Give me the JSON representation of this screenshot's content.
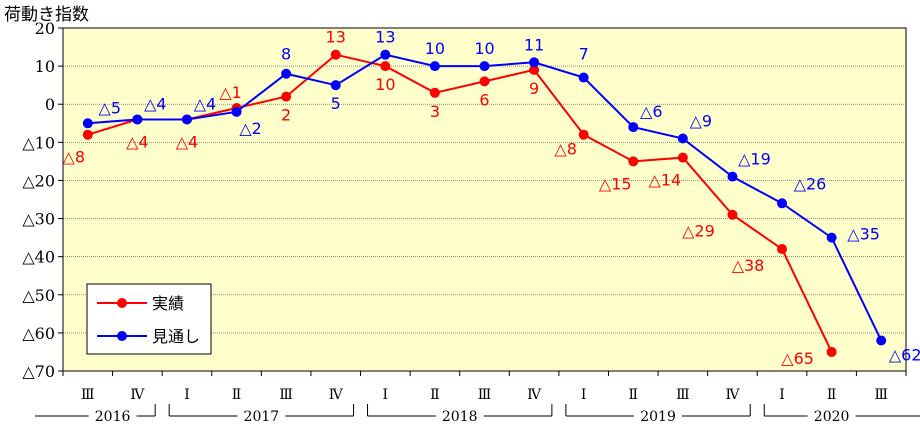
{
  "chart_data": {
    "type": "line",
    "ylabel": "荷動き指数",
    "ylim": [
      -70,
      20
    ],
    "yticks": [
      {
        "v": 20,
        "label": "20"
      },
      {
        "v": 10,
        "label": "10"
      },
      {
        "v": 0,
        "label": "0"
      },
      {
        "v": -10,
        "label": "△10"
      },
      {
        "v": -20,
        "label": "△20"
      },
      {
        "v": -30,
        "label": "△30"
      },
      {
        "v": -40,
        "label": "△40"
      },
      {
        "v": -50,
        "label": "△50"
      },
      {
        "v": -60,
        "label": "△60"
      },
      {
        "v": -70,
        "label": "△70"
      }
    ],
    "categories": [
      "Ⅲ",
      "Ⅳ",
      "Ⅰ",
      "Ⅱ",
      "Ⅲ",
      "Ⅳ",
      "Ⅰ",
      "Ⅱ",
      "Ⅲ",
      "Ⅳ",
      "Ⅰ",
      "Ⅱ",
      "Ⅲ",
      "Ⅳ",
      "Ⅰ",
      "Ⅱ",
      "Ⅲ"
    ],
    "years": [
      {
        "label": "2016",
        "from": 0,
        "to": 1
      },
      {
        "label": "2017",
        "from": 2,
        "to": 5
      },
      {
        "label": "2018",
        "from": 6,
        "to": 9
      },
      {
        "label": "2019",
        "from": 10,
        "to": 13
      },
      {
        "label": "2020",
        "from": 14,
        "to": 16
      }
    ],
    "grid": true,
    "legend_position": "bottom-left",
    "series": [
      {
        "name": "実績",
        "color": "#ff0000",
        "values": [
          -8,
          -4,
          -4,
          -1,
          2,
          13,
          10,
          3,
          6,
          9,
          -8,
          -15,
          -14,
          -29,
          -38,
          -65,
          null
        ],
        "labels": [
          "△8",
          "△4",
          "△4",
          "△1",
          "2",
          "13",
          "10",
          "3",
          "6",
          "9",
          "△8",
          "△15",
          "△14",
          "△29",
          "△38",
          "△65",
          ""
        ]
      },
      {
        "name": "見通し",
        "color": "#0000ff",
        "values": [
          -5,
          -4,
          -4,
          -2,
          8,
          5,
          13,
          10,
          10,
          11,
          7,
          -6,
          -9,
          -19,
          -26,
          -35,
          -62
        ],
        "labels": [
          "△5",
          "△4",
          "△4",
          "△2",
          "8",
          "5",
          "13",
          "10",
          "10",
          "11",
          "7",
          "△6",
          "△9",
          "△19",
          "△26",
          "△35",
          "△62"
        ]
      }
    ],
    "plot_background": "#ffffcc"
  }
}
